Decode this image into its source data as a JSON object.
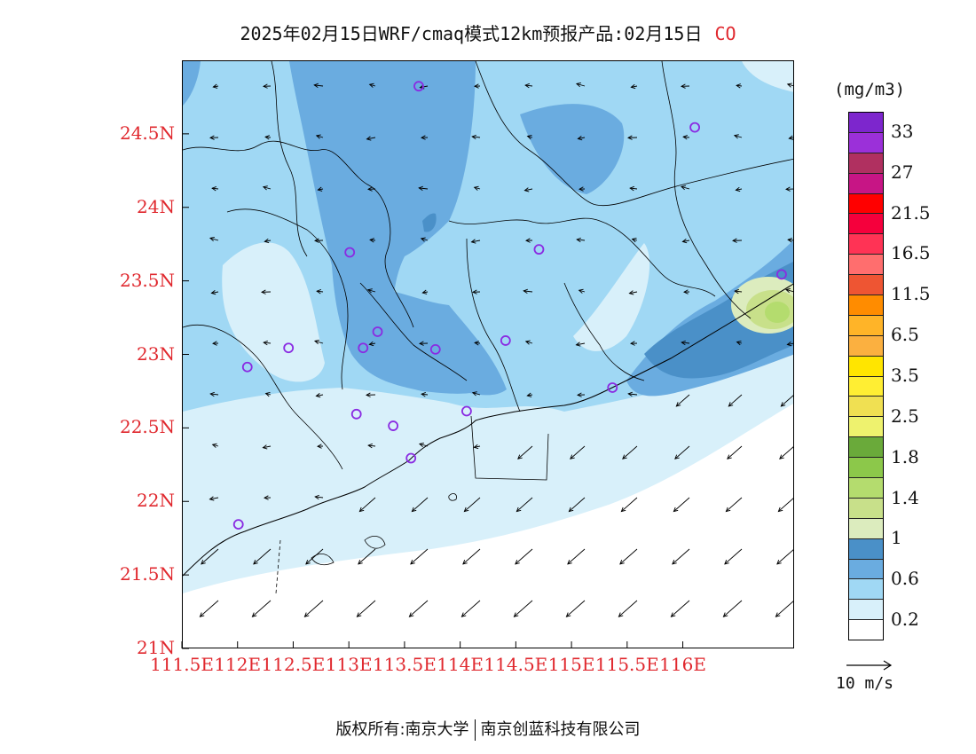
{
  "title": {
    "text": "2025年02月15日WRF/cmaq模式12km预报产品:02月15日",
    "pollutant": "CO"
  },
  "colorbar": {
    "unit": "(mg/m3)",
    "colors_top_to_bottom": [
      "#7d26cd",
      "#9b30d9",
      "#b03060",
      "#c71585",
      "#ff0000",
      "#f5003c",
      "#ff3355",
      "#ff6e6e",
      "#ee5533",
      "#ff8c00",
      "#ffb428",
      "#fbb040",
      "#ffe500",
      "#ffee33",
      "#f0e052",
      "#eef26e",
      "#6aaa3a",
      "#8cc84a",
      "#b4dc6e",
      "#c8e08a",
      "#dcecbe",
      "#4a90c8",
      "#6aace0",
      "#a0d8f4",
      "#d8f0fa",
      "#ffffff"
    ],
    "labels": [
      "33",
      "27",
      "21.5",
      "16.5",
      "11.5",
      "6.5",
      "3.5",
      "2.5",
      "1.8",
      "1.4",
      "1",
      "0.6",
      "0.2"
    ]
  },
  "axes": {
    "lat_labels": [
      "24.5N",
      "24N",
      "23.5N",
      "23N",
      "22.5N",
      "22N",
      "21.5N",
      "21N"
    ],
    "lon_labels": [
      "111.5E",
      "112E",
      "112.5E",
      "113E",
      "113.5E",
      "114E",
      "114.5E",
      "115E",
      "115.5E",
      "116E"
    ],
    "label_color": "#e0282e"
  },
  "map": {
    "lat_range": [
      21.0,
      25.0
    ],
    "lon_range": [
      111.5,
      117.0
    ],
    "station_color": "#8a2be2",
    "stations": [
      {
        "lon": 113.62,
        "lat": 24.83
      },
      {
        "lon": 116.1,
        "lat": 24.55
      },
      {
        "lon": 113.0,
        "lat": 23.7
      },
      {
        "lon": 114.7,
        "lat": 23.72
      },
      {
        "lon": 116.88,
        "lat": 23.55
      },
      {
        "lon": 113.25,
        "lat": 23.16
      },
      {
        "lon": 113.12,
        "lat": 23.05
      },
      {
        "lon": 113.77,
        "lat": 23.04
      },
      {
        "lon": 114.4,
        "lat": 23.1
      },
      {
        "lon": 112.45,
        "lat": 23.05
      },
      {
        "lon": 112.08,
        "lat": 22.92
      },
      {
        "lon": 115.36,
        "lat": 22.78
      },
      {
        "lon": 113.06,
        "lat": 22.6
      },
      {
        "lon": 114.05,
        "lat": 22.62
      },
      {
        "lon": 113.39,
        "lat": 22.52
      },
      {
        "lon": 113.55,
        "lat": 22.3
      },
      {
        "lon": 112.0,
        "lat": 21.85
      }
    ]
  },
  "wind_reference": {
    "label": "10 m/s",
    "speed": 10
  },
  "footer": {
    "left": "版权所有:南京大学",
    "right": "南京创蓝科技有限公司"
  }
}
